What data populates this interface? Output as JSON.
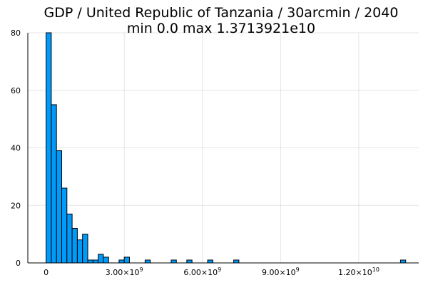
{
  "chart_data": {
    "type": "bar",
    "title_line1": "GDP / United Republic of Tanzania / 30arcmin / 2040",
    "title_line2": "min 0.0  max 1.3713921e10",
    "xlabel": "",
    "ylabel": "",
    "xlim": [
      -700000000,
      14300000000
    ],
    "ylim": [
      0,
      80
    ],
    "grid": true,
    "legend": false,
    "bar_color": "#009AF9",
    "bin_width": 200000000,
    "x_ticks": [
      {
        "value": 0,
        "label": "0"
      },
      {
        "value": 3000000000,
        "label": "3.00×10",
        "exp": "9"
      },
      {
        "value": 6000000000,
        "label": "6.00×10",
        "exp": "9"
      },
      {
        "value": 9000000000,
        "label": "9.00×10",
        "exp": "9"
      },
      {
        "value": 12000000000,
        "label": "1.20×10",
        "exp": "10"
      }
    ],
    "y_ticks": [
      0,
      20,
      40,
      60,
      80
    ],
    "bins": [
      {
        "x": 0,
        "count": 80
      },
      {
        "x": 200000000,
        "count": 55
      },
      {
        "x": 400000000,
        "count": 39
      },
      {
        "x": 600000000,
        "count": 26
      },
      {
        "x": 800000000,
        "count": 17
      },
      {
        "x": 1000000000,
        "count": 12
      },
      {
        "x": 1200000000,
        "count": 8
      },
      {
        "x": 1400000000,
        "count": 10
      },
      {
        "x": 1600000000,
        "count": 1
      },
      {
        "x": 1800000000,
        "count": 1
      },
      {
        "x": 2000000000,
        "count": 3
      },
      {
        "x": 2200000000,
        "count": 2
      },
      {
        "x": 2800000000,
        "count": 1
      },
      {
        "x": 3000000000,
        "count": 2
      },
      {
        "x": 3800000000,
        "count": 1
      },
      {
        "x": 4800000000,
        "count": 1
      },
      {
        "x": 5400000000,
        "count": 1
      },
      {
        "x": 6200000000,
        "count": 1
      },
      {
        "x": 7200000000,
        "count": 1
      },
      {
        "x": 13600000000,
        "count": 1
      }
    ]
  }
}
